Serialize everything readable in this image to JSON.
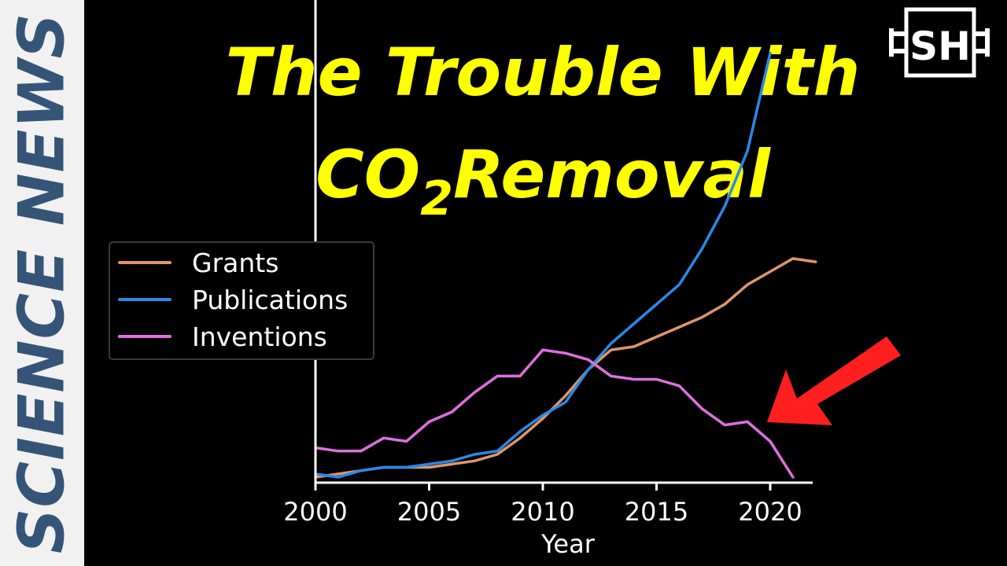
{
  "sidebar": {
    "label": "SCIENCE NEWS",
    "color": "#355578"
  },
  "title": {
    "line1": "The Trouble With",
    "line2_prefix": "CO",
    "line2_sub": "2",
    "line2_suffix": "Removal",
    "color": "#ffff00"
  },
  "logo": {
    "text": "SH"
  },
  "annotation": {
    "icon": "red-arrow-icon",
    "color": "#ff1f1f"
  },
  "chart_data": {
    "type": "line",
    "xlabel": "Year",
    "ylabel": "",
    "xlim": [
      2000,
      2022
    ],
    "ylim": [
      0,
      100
    ],
    "x_ticks": [
      2000,
      2005,
      2010,
      2015,
      2020
    ],
    "x_tick_labels": [
      "2000",
      "2005",
      "2010",
      "2015",
      "2020"
    ],
    "legend_position": "upper-left",
    "grid": false,
    "x": [
      2000,
      2001,
      2002,
      2003,
      2004,
      2005,
      2006,
      2007,
      2008,
      2009,
      2010,
      2011,
      2012,
      2013,
      2014,
      2015,
      2016,
      2017,
      2018,
      2019,
      2020,
      2021,
      2022
    ],
    "series": [
      {
        "name": "Grants",
        "color": "#e0956a",
        "values": [
          0,
          1,
          2,
          3,
          3,
          3,
          4,
          5,
          7,
          12,
          18,
          25,
          33,
          39,
          40,
          43,
          46,
          49,
          53,
          59,
          63,
          67,
          66
        ]
      },
      {
        "name": "Publications",
        "color": "#2a88e8",
        "values": [
          1,
          0,
          2,
          3,
          3,
          4,
          5,
          7,
          8,
          14,
          19,
          23,
          33,
          41,
          47,
          53,
          59,
          70,
          83,
          100,
          130,
          null,
          null
        ]
      },
      {
        "name": "Inventions",
        "color": "#dd6fe0",
        "values": [
          9,
          8,
          8,
          12,
          11,
          17,
          20,
          26,
          31,
          31,
          39,
          38,
          36,
          31,
          30,
          30,
          28,
          21,
          16,
          17,
          11,
          0,
          null
        ]
      }
    ]
  }
}
